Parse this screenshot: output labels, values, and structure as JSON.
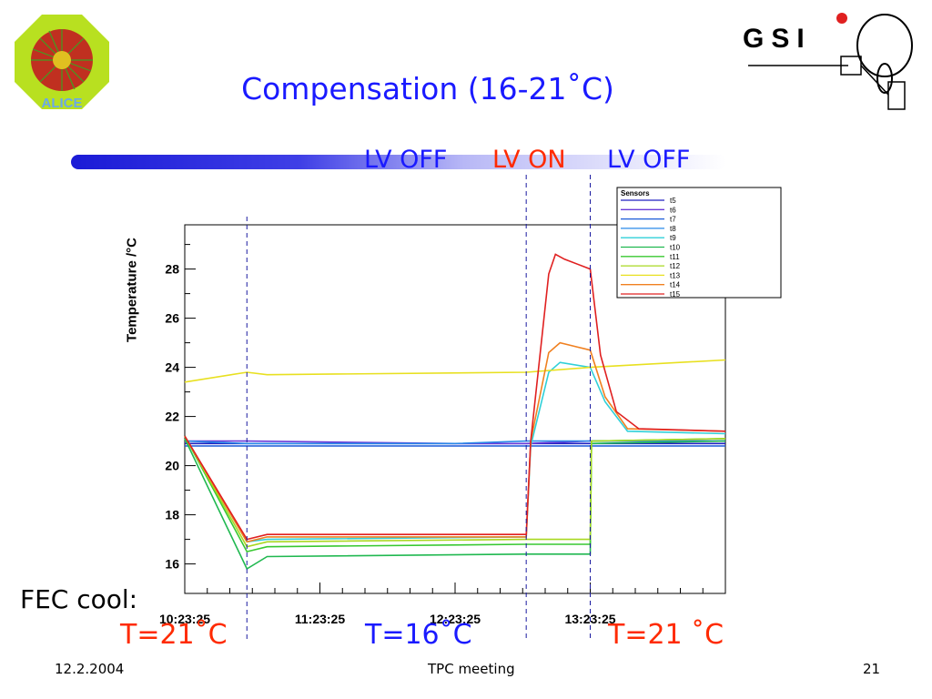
{
  "slide": {
    "title": "Compensation (16-21˚C)",
    "phase_labels": [
      "LV OFF",
      "LV ON",
      "LV OFF"
    ],
    "fec_label": "FEC cool:",
    "temp_labels": [
      "T=21˚C",
      "T=16˚C",
      "T=21 ˚C"
    ],
    "footer": {
      "date": "12.2.2004",
      "center": "TPC meeting",
      "page": "21"
    },
    "logos": {
      "left": "ALICE",
      "right": "GSI"
    },
    "colors": {
      "title": "#1a1aff",
      "red": "#ff2a00"
    }
  },
  "chart_data": {
    "type": "line",
    "title": "",
    "xlabel": "",
    "ylabel": "Temperature /°C",
    "x_ticks": [
      "10:23:25",
      "11:23:25",
      "12:23:25",
      "13:23:25"
    ],
    "y_ticks": [
      16,
      18,
      20,
      22,
      24,
      26,
      28
    ],
    "ylim": [
      14.8,
      29.8
    ],
    "xlim": [
      "10:23:25",
      "14:23:25"
    ],
    "legend_title": "Sensors",
    "legend_position": "top-right",
    "markers_x": [
      "10:51:00",
      "12:55:00",
      "13:23:25"
    ],
    "series": [
      {
        "name": "t5",
        "color": "#2020c0",
        "points": [
          [
            "10:23:25",
            20.9
          ],
          [
            "10:51:00",
            20.9
          ],
          [
            "12:23:25",
            20.9
          ],
          [
            "12:55:00",
            20.9
          ],
          [
            "13:23:25",
            20.9
          ],
          [
            "14:23:25",
            20.9
          ]
        ]
      },
      {
        "name": "t6",
        "color": "#6a3ad8",
        "points": [
          [
            "10:23:25",
            21.0
          ],
          [
            "10:51:00",
            21.0
          ],
          [
            "12:23:25",
            20.9
          ],
          [
            "12:55:00",
            20.9
          ],
          [
            "13:23:25",
            21.0
          ],
          [
            "14:23:25",
            21.0
          ]
        ]
      },
      {
        "name": "t7",
        "color": "#1a5ad8",
        "points": [
          [
            "10:23:25",
            20.8
          ],
          [
            "10:51:00",
            20.8
          ],
          [
            "12:23:25",
            20.8
          ],
          [
            "12:55:00",
            20.8
          ],
          [
            "13:23:25",
            20.8
          ],
          [
            "14:23:25",
            20.8
          ]
        ]
      },
      {
        "name": "t8",
        "color": "#2a8ae8",
        "points": [
          [
            "10:23:25",
            21.0
          ],
          [
            "10:51:00",
            20.9
          ],
          [
            "12:23:25",
            20.9
          ],
          [
            "12:55:00",
            21.0
          ],
          [
            "13:23:25",
            21.0
          ],
          [
            "14:23:25",
            21.0
          ]
        ]
      },
      {
        "name": "t9",
        "color": "#30d0d8",
        "points": [
          [
            "10:23:25",
            21.2
          ],
          [
            "10:51:00",
            16.9
          ],
          [
            "11:00:00",
            17.0
          ],
          [
            "12:55:00",
            17.1
          ],
          [
            "12:57:00",
            20.8
          ],
          [
            "13:05:00",
            23.8
          ],
          [
            "13:10:00",
            24.2
          ],
          [
            "13:23:25",
            24.0
          ],
          [
            "13:30:00",
            22.6
          ],
          [
            "13:40:00",
            21.4
          ],
          [
            "14:23:25",
            21.3
          ]
        ]
      },
      {
        "name": "t10",
        "color": "#20b850",
        "points": [
          [
            "10:23:25",
            21.1
          ],
          [
            "10:51:00",
            15.8
          ],
          [
            "11:00:00",
            16.3
          ],
          [
            "12:55:00",
            16.4
          ],
          [
            "13:23:25",
            16.4
          ],
          [
            "13:24:00",
            20.9
          ],
          [
            "14:23:25",
            21.0
          ]
        ]
      },
      {
        "name": "t11",
        "color": "#38c830",
        "points": [
          [
            "10:23:25",
            21.2
          ],
          [
            "10:51:00",
            16.5
          ],
          [
            "11:00:00",
            16.7
          ],
          [
            "12:55:00",
            16.8
          ],
          [
            "13:23:25",
            16.8
          ],
          [
            "13:24:00",
            21.0
          ],
          [
            "14:23:25",
            21.1
          ]
        ]
      },
      {
        "name": "t12",
        "color": "#a8d820",
        "points": [
          [
            "10:23:25",
            21.2
          ],
          [
            "10:51:00",
            16.7
          ],
          [
            "11:00:00",
            16.9
          ],
          [
            "12:55:00",
            17.0
          ],
          [
            "13:23:25",
            17.0
          ],
          [
            "13:24:00",
            21.0
          ],
          [
            "14:23:25",
            21.1
          ]
        ]
      },
      {
        "name": "t13",
        "color": "#e8e020",
        "points": [
          [
            "10:23:25",
            23.4
          ],
          [
            "10:51:00",
            23.8
          ],
          [
            "11:00:00",
            23.7
          ],
          [
            "12:55:00",
            23.8
          ],
          [
            "13:23:25",
            24.0
          ],
          [
            "14:23:25",
            24.3
          ]
        ]
      },
      {
        "name": "t14",
        "color": "#f08020",
        "points": [
          [
            "10:23:25",
            21.2
          ],
          [
            "10:51:00",
            16.9
          ],
          [
            "11:00:00",
            17.1
          ],
          [
            "12:55:00",
            17.1
          ],
          [
            "12:57:00",
            21.0
          ],
          [
            "13:05:00",
            24.6
          ],
          [
            "13:10:00",
            25.0
          ],
          [
            "13:23:25",
            24.7
          ],
          [
            "13:30:00",
            22.8
          ],
          [
            "13:40:00",
            21.5
          ],
          [
            "14:23:25",
            21.4
          ]
        ]
      },
      {
        "name": "t15",
        "color": "#e02020",
        "points": [
          [
            "10:23:25",
            21.2
          ],
          [
            "10:51:00",
            17.0
          ],
          [
            "11:00:00",
            17.2
          ],
          [
            "12:55:00",
            17.2
          ],
          [
            "12:57:00",
            21.0
          ],
          [
            "13:05:00",
            27.8
          ],
          [
            "13:08:00",
            28.6
          ],
          [
            "13:12:00",
            28.4
          ],
          [
            "13:23:25",
            28.0
          ],
          [
            "13:28:00",
            24.5
          ],
          [
            "13:35:00",
            22.2
          ],
          [
            "13:45:00",
            21.5
          ],
          [
            "14:23:25",
            21.4
          ]
        ]
      }
    ]
  }
}
